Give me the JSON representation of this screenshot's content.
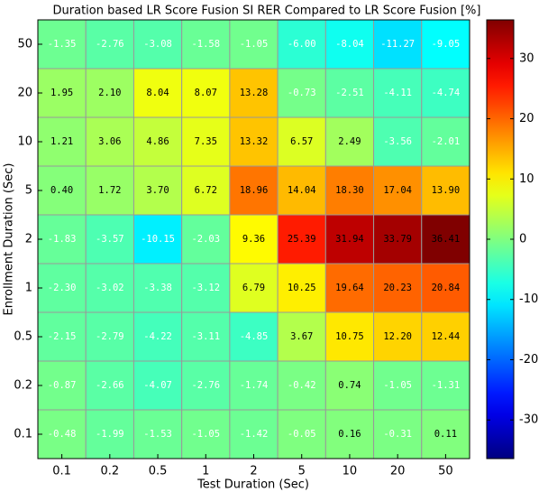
{
  "chart_data": {
    "type": "heatmap",
    "title": "Duration based LR Score Fusion SI RER Compared to LR Score Fusion [%]",
    "x_label": "Test Duration (Sec)",
    "y_label": "Enrollment Duration (Sec)",
    "x_categories": [
      "0.1",
      "0.2",
      "0.5",
      "1",
      "2",
      "5",
      "10",
      "20",
      "50"
    ],
    "y_categories": [
      "50",
      "20",
      "10",
      "5",
      "2",
      "1",
      "0.5",
      "0.2",
      "0.1"
    ],
    "values": [
      [
        -1.35,
        -2.76,
        -3.08,
        -1.58,
        -1.05,
        -6.0,
        -8.04,
        -11.27,
        -9.05
      ],
      [
        1.95,
        2.1,
        8.04,
        8.07,
        13.28,
        -0.73,
        -2.51,
        -4.11,
        -4.74
      ],
      [
        1.21,
        3.06,
        4.86,
        7.35,
        13.32,
        6.57,
        2.49,
        -3.56,
        -2.01
      ],
      [
        0.4,
        1.72,
        3.7,
        6.72,
        18.96,
        14.04,
        18.3,
        17.04,
        13.9
      ],
      [
        -1.83,
        -3.57,
        -10.15,
        -2.03,
        9.36,
        25.39,
        31.94,
        33.79,
        36.41
      ],
      [
        -2.3,
        -3.02,
        -3.38,
        -3.12,
        6.79,
        10.25,
        19.64,
        20.23,
        20.84
      ],
      [
        -2.15,
        -2.79,
        -4.22,
        -3.11,
        -4.85,
        3.67,
        10.75,
        12.2,
        12.44
      ],
      [
        -0.87,
        -2.66,
        -4.07,
        -2.76,
        -1.74,
        -0.42,
        0.74,
        -1.05,
        -1.31
      ],
      [
        -0.48,
        -1.99,
        -1.53,
        -1.05,
        -1.42,
        -0.05,
        0.16,
        -0.31,
        0.11
      ]
    ],
    "value_labels": [
      [
        "-1.35",
        "-2.76",
        "-3.08",
        "-1.58",
        "-1.05",
        "-6.00",
        "-8.04",
        "-11.27",
        "-9.05"
      ],
      [
        "1.95",
        "2.10",
        "8.04",
        "8.07",
        "13.28",
        "-0.73",
        "-2.51",
        "-4.11",
        "-4.74"
      ],
      [
        "1.21",
        "3.06",
        "4.86",
        "7.35",
        "13.32",
        "6.57",
        "2.49",
        "-3.56",
        "-2.01"
      ],
      [
        "0.40",
        "1.72",
        "3.70",
        "6.72",
        "18.96",
        "14.04",
        "18.30",
        "17.04",
        "13.90"
      ],
      [
        "-1.83",
        "-3.57",
        "-10.15",
        "-2.03",
        "9.36",
        "25.39",
        "31.94",
        "33.79",
        "36.41"
      ],
      [
        "-2.30",
        "-3.02",
        "-3.38",
        "-3.12",
        "6.79",
        "10.25",
        "19.64",
        "20.23",
        "20.84"
      ],
      [
        "-2.15",
        "-2.79",
        "-4.22",
        "-3.11",
        "-4.85",
        "3.67",
        "10.75",
        "12.20",
        "12.44"
      ],
      [
        "-0.87",
        "-2.66",
        "-4.07",
        "-2.76",
        "-1.74",
        "-0.42",
        "0.74",
        "-1.05",
        "-1.31"
      ],
      [
        "-0.48",
        "-1.99",
        "-1.53",
        "-1.05",
        "-1.42",
        "-0.05",
        "0.16",
        "-0.31",
        "0.11"
      ]
    ],
    "colormap": "jet",
    "clim": [
      -36.41,
      36.41
    ],
    "cticks": [
      -30,
      -20,
      -10,
      0,
      10,
      20,
      30
    ]
  }
}
